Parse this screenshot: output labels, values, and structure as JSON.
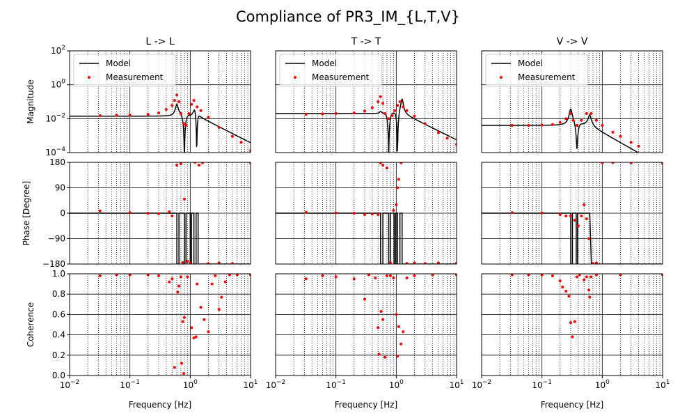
{
  "chart_data": {
    "type": "scatter",
    "title": "Compliance of PR3_IM_{L,T,V}",
    "xlabel": "Frequency [Hz]",
    "xscale": "log",
    "xlim": [
      0.01,
      10
    ],
    "x_ticks": [
      {
        "base": "10",
        "exp": "−2"
      },
      {
        "base": "10",
        "exp": "−1"
      },
      {
        "base": "10",
        "exp": "0"
      },
      {
        "base": "10",
        "exp": "1"
      }
    ],
    "row_labels": [
      "Magnitude",
      "Phase [Degree]",
      "Coherence"
    ],
    "magnitude_ticks": [
      {
        "base": "10",
        "exp": "2"
      },
      {
        "base": "10",
        "exp": "0"
      },
      {
        "base": "10",
        "exp": "−2"
      },
      {
        "base": "10",
        "exp": "−4"
      }
    ],
    "magnitude_ylim_log10": [
      -4,
      2
    ],
    "phase_ticks": [
      "180",
      "90",
      "0",
      "−90",
      "−180"
    ],
    "phase_ylim": [
      -180,
      180
    ],
    "coherence_ticks": [
      "1.0",
      "0.8",
      "0.6",
      "0.4",
      "0.2",
      "0.0"
    ],
    "coherence_ylim": [
      0,
      1
    ],
    "legend": {
      "model": "Model",
      "measurement": "Measurement",
      "placement": "upper left"
    },
    "colors": {
      "model": "#000000",
      "measurement": "#ff0000"
    },
    "columns": [
      {
        "title": "L -> L",
        "static_gain": 0.014,
        "model": {
          "resonances": [
            {
              "f": 0.6,
              "a": 4.0,
              "w": 0.05
            },
            {
              "f": 1.18,
              "a": 1.5,
              "w": 0.05
            },
            {
              "f": 1.35,
              "a": 0.06,
              "w": 0.05
            }
          ],
          "antiresonances": [
            {
              "f": 0.8,
              "d": 0.0002,
              "w": 0.06
            },
            {
              "f": 1.28,
              "d": 0.002,
              "w": 0.04
            }
          ],
          "highfreq_slope": {
            "f0": 1.35,
            "p": 1.8
          }
        },
        "measurement_magnitude": [
          [
            0.032,
            0.015
          ],
          [
            0.06,
            0.016
          ],
          [
            0.1,
            0.016
          ],
          [
            0.2,
            0.018
          ],
          [
            0.3,
            0.022
          ],
          [
            0.4,
            0.035
          ],
          [
            0.5,
            0.06
          ],
          [
            0.55,
            0.12
          ],
          [
            0.6,
            0.25
          ],
          [
            0.65,
            0.1
          ],
          [
            0.7,
            0.02
          ],
          [
            0.78,
            0.005
          ],
          [
            0.85,
            0.004
          ],
          [
            0.95,
            0.02
          ],
          [
            1.05,
            0.07
          ],
          [
            1.15,
            0.12
          ],
          [
            1.3,
            0.05
          ],
          [
            1.5,
            0.03
          ],
          [
            2.0,
            0.012
          ],
          [
            3.0,
            0.003
          ],
          [
            5.0,
            0.0009
          ],
          [
            7.0,
            0.0004
          ],
          [
            10.0,
            0.00013
          ]
        ],
        "model_phase": [
          [
            0.01,
            0
          ],
          [
            0.6,
            0
          ],
          [
            0.6,
            -180
          ],
          [
            0.65,
            -180
          ],
          [
            0.65,
            0
          ],
          [
            0.8,
            0
          ],
          [
            0.8,
            -180
          ],
          [
            0.85,
            -180
          ],
          [
            0.85,
            0
          ],
          [
            1.0,
            0
          ],
          [
            1.0,
            -180
          ],
          [
            1.05,
            -180
          ],
          [
            1.05,
            0
          ],
          [
            1.15,
            0
          ],
          [
            1.15,
            -180
          ],
          [
            1.25,
            -180
          ],
          [
            1.25,
            0
          ],
          [
            1.35,
            0
          ],
          [
            1.35,
            -180
          ],
          [
            10,
            -180
          ]
        ],
        "measurement_phase": [
          [
            0.032,
            8
          ],
          [
            0.1,
            2
          ],
          [
            0.2,
            0
          ],
          [
            0.3,
            -2
          ],
          [
            0.45,
            5
          ],
          [
            0.5,
            -10
          ],
          [
            0.6,
            170
          ],
          [
            0.7,
            175
          ],
          [
            0.75,
            -175
          ],
          [
            0.8,
            50
          ],
          [
            0.9,
            -170
          ],
          [
            1.0,
            -175
          ],
          [
            1.2,
            180
          ],
          [
            1.4,
            170
          ],
          [
            1.6,
            178
          ],
          [
            2,
            -178
          ],
          [
            3,
            -176
          ],
          [
            5,
            -178
          ],
          [
            10,
            178
          ]
        ],
        "coherence": [
          [
            0.032,
            0.98
          ],
          [
            0.06,
            0.99
          ],
          [
            0.1,
            0.99
          ],
          [
            0.2,
            0.99
          ],
          [
            0.3,
            0.98
          ],
          [
            0.45,
            0.92
          ],
          [
            0.5,
            0.95
          ],
          [
            0.55,
            0.08
          ],
          [
            0.62,
            0.82
          ],
          [
            0.65,
            0.88
          ],
          [
            0.7,
            0.97
          ],
          [
            0.72,
            0.12
          ],
          [
            0.75,
            0.53
          ],
          [
            0.78,
            0.02
          ],
          [
            0.8,
            0.57
          ],
          [
            0.9,
            0.97
          ],
          [
            1.05,
            0.47
          ],
          [
            1.15,
            0.37
          ],
          [
            1.25,
            0.38
          ],
          [
            1.3,
            0.9
          ],
          [
            1.5,
            0.67
          ],
          [
            1.7,
            0.55
          ],
          [
            2.0,
            0.43
          ],
          [
            2.3,
            0.9
          ],
          [
            2.6,
            0.98
          ],
          [
            3.0,
            0.65
          ],
          [
            3.3,
            0.77
          ],
          [
            3.8,
            0.92
          ],
          [
            4.5,
            0.99
          ],
          [
            6,
            0.99
          ],
          [
            10,
            0.99
          ]
        ]
      },
      {
        "title": "T -> T",
        "static_gain": 0.02,
        "model": {
          "resonances": [
            {
              "f": 0.55,
              "a": 0.3,
              "w": 0.05
            },
            {
              "f": 1.25,
              "a": 6.0,
              "w": 0.04
            },
            {
              "f": 1.15,
              "a": 0.1,
              "w": 0.05
            }
          ],
          "antiresonances": [
            {
              "f": 0.75,
              "d": 0.003,
              "w": 0.06
            },
            {
              "f": 1.05,
              "d": 0.003,
              "w": 0.05
            }
          ],
          "highfreq_slope": {
            "f0": 1.3,
            "p": 1.75
          }
        },
        "measurement_magnitude": [
          [
            0.032,
            0.018
          ],
          [
            0.06,
            0.019
          ],
          [
            0.1,
            0.02
          ],
          [
            0.2,
            0.022
          ],
          [
            0.3,
            0.028
          ],
          [
            0.4,
            0.045
          ],
          [
            0.5,
            0.1
          ],
          [
            0.55,
            0.2
          ],
          [
            0.6,
            0.08
          ],
          [
            0.65,
            0.02
          ],
          [
            0.75,
            0.01
          ],
          [
            0.85,
            0.015
          ],
          [
            0.95,
            0.03
          ],
          [
            1.05,
            0.06
          ],
          [
            1.15,
            0.1
          ],
          [
            1.3,
            0.05
          ],
          [
            1.5,
            0.03
          ],
          [
            2.0,
            0.014
          ],
          [
            3.0,
            0.005
          ],
          [
            5.0,
            0.0015
          ],
          [
            7.0,
            0.0007
          ],
          [
            10.0,
            0.0003
          ]
        ],
        "model_phase": [
          [
            0.01,
            0
          ],
          [
            0.55,
            0
          ],
          [
            0.55,
            -180
          ],
          [
            0.6,
            -180
          ],
          [
            0.6,
            0
          ],
          [
            0.75,
            0
          ],
          [
            0.75,
            -180
          ],
          [
            0.8,
            -180
          ],
          [
            0.8,
            0
          ],
          [
            0.92,
            0
          ],
          [
            0.92,
            -180
          ],
          [
            0.97,
            -180
          ],
          [
            0.97,
            0
          ],
          [
            1.05,
            0
          ],
          [
            1.05,
            -180
          ],
          [
            1.15,
            -180
          ],
          [
            1.15,
            0
          ],
          [
            1.25,
            0
          ],
          [
            1.25,
            -180
          ],
          [
            10,
            -180
          ]
        ],
        "measurement_phase": [
          [
            0.032,
            3
          ],
          [
            0.1,
            1
          ],
          [
            0.2,
            0
          ],
          [
            0.3,
            -5
          ],
          [
            0.4,
            -3
          ],
          [
            0.5,
            -5
          ],
          [
            0.55,
            178
          ],
          [
            0.6,
            170
          ],
          [
            0.7,
            160
          ],
          [
            0.8,
            -175
          ],
          [
            0.9,
            10
          ],
          [
            1.0,
            30
          ],
          [
            1.05,
            90
          ],
          [
            1.1,
            120
          ],
          [
            1.2,
            178
          ],
          [
            1.5,
            -178
          ],
          [
            2,
            -176
          ],
          [
            3,
            -178
          ],
          [
            5,
            -176
          ],
          [
            10,
            -177
          ]
        ],
        "coherence": [
          [
            0.032,
            0.95
          ],
          [
            0.06,
            0.98
          ],
          [
            0.1,
            0.97
          ],
          [
            0.2,
            0.95
          ],
          [
            0.3,
            0.75
          ],
          [
            0.35,
            0.99
          ],
          [
            0.45,
            0.96
          ],
          [
            0.5,
            0.47
          ],
          [
            0.52,
            0.21
          ],
          [
            0.56,
            0.63
          ],
          [
            0.6,
            0.55
          ],
          [
            0.65,
            0.18
          ],
          [
            0.7,
            0.98
          ],
          [
            0.8,
            0.98
          ],
          [
            0.9,
            0.96
          ],
          [
            1.0,
            0.6
          ],
          [
            1.05,
            0.19
          ],
          [
            1.1,
            0.48
          ],
          [
            1.2,
            0.31
          ],
          [
            1.3,
            0.43
          ],
          [
            1.5,
            0.96
          ],
          [
            2,
            0.98
          ],
          [
            4,
            0.99
          ],
          [
            10,
            0.99
          ]
        ]
      },
      {
        "title": "V -> V",
        "static_gain": 0.004,
        "model": {
          "resonances": [
            {
              "f": 0.3,
              "a": 8.0,
              "w": 0.05
            },
            {
              "f": 0.62,
              "a": 3.0,
              "w": 0.06
            }
          ],
          "antiresonances": [
            {
              "f": 0.38,
              "d": 0.03,
              "w": 0.06
            }
          ],
          "highfreq_slope": {
            "f0": 0.62,
            "p": 2.0
          }
        },
        "measurement_magnitude": [
          [
            0.032,
            0.004
          ],
          [
            0.06,
            0.004
          ],
          [
            0.1,
            0.0042
          ],
          [
            0.15,
            0.0045
          ],
          [
            0.2,
            0.006
          ],
          [
            0.25,
            0.01
          ],
          [
            0.3,
            0.02
          ],
          [
            0.33,
            0.008
          ],
          [
            0.38,
            0.004
          ],
          [
            0.45,
            0.008
          ],
          [
            0.55,
            0.02
          ],
          [
            0.65,
            0.02
          ],
          [
            0.8,
            0.008
          ],
          [
            1.0,
            0.004
          ],
          [
            1.5,
            0.0016
          ],
          [
            2.0,
            0.0009
          ],
          [
            3.0,
            0.0004
          ],
          [
            4.0,
            0.00024
          ]
        ],
        "model_phase": [
          [
            0.01,
            0
          ],
          [
            0.3,
            0
          ],
          [
            0.3,
            -180
          ],
          [
            0.32,
            -180
          ],
          [
            0.32,
            0
          ],
          [
            0.37,
            0
          ],
          [
            0.37,
            -180
          ],
          [
            0.39,
            -180
          ],
          [
            0.39,
            0
          ],
          [
            0.62,
            0
          ],
          [
            0.66,
            -180
          ],
          [
            10,
            -180
          ]
        ],
        "measurement_phase": [
          [
            0.032,
            2
          ],
          [
            0.1,
            1
          ],
          [
            0.2,
            -5
          ],
          [
            0.25,
            -10
          ],
          [
            0.3,
            -10
          ],
          [
            0.35,
            -25
          ],
          [
            0.4,
            -45
          ],
          [
            0.45,
            -10
          ],
          [
            0.5,
            30
          ],
          [
            0.55,
            -20
          ],
          [
            0.6,
            -90
          ],
          [
            0.7,
            -178
          ],
          [
            0.8,
            -176
          ],
          [
            1.0,
            178
          ],
          [
            1.5,
            179
          ],
          [
            3,
            178
          ],
          [
            10,
            176
          ]
        ],
        "coherence": [
          [
            0.032,
            0.99
          ],
          [
            0.06,
            0.99
          ],
          [
            0.1,
            0.99
          ],
          [
            0.15,
            0.98
          ],
          [
            0.2,
            0.93
          ],
          [
            0.22,
            0.87
          ],
          [
            0.25,
            0.83
          ],
          [
            0.28,
            0.78
          ],
          [
            0.3,
            0.52
          ],
          [
            0.32,
            0.38
          ],
          [
            0.35,
            0.53
          ],
          [
            0.38,
            0.97
          ],
          [
            0.42,
            0.99
          ],
          [
            0.5,
            0.94
          ],
          [
            0.55,
            0.97
          ],
          [
            0.6,
            0.84
          ],
          [
            0.62,
            0.77
          ],
          [
            0.65,
            0.97
          ],
          [
            0.8,
            0.99
          ],
          [
            2,
            0.99
          ],
          [
            10,
            0.99
          ]
        ]
      }
    ]
  }
}
